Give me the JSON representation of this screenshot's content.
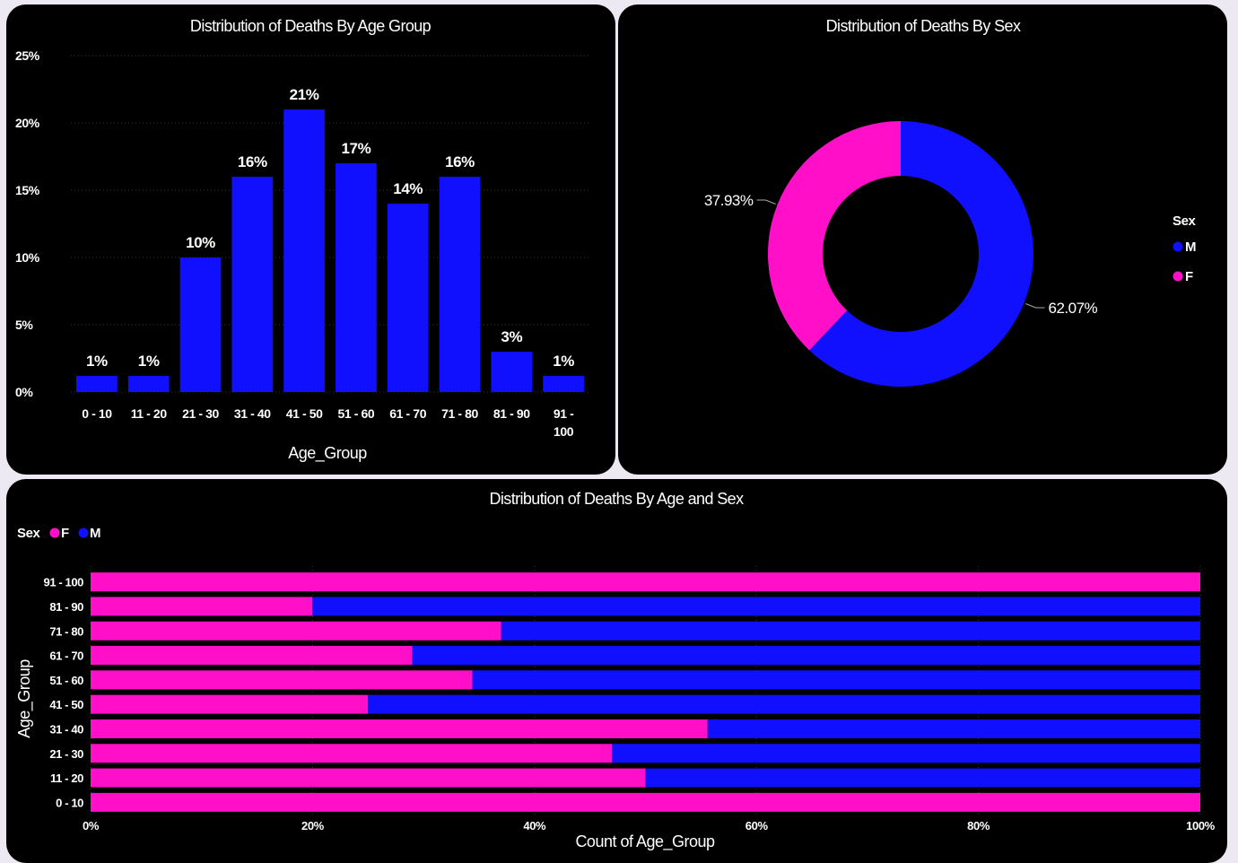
{
  "colors": {
    "male": "#1010ff",
    "female": "#ff10c8",
    "background": "#000000",
    "page": "#ece9f2",
    "grid": "#333333"
  },
  "chart_data": [
    {
      "type": "bar",
      "title": "Distribution of Deaths By Age Group",
      "xlabel": "Age_Group",
      "ylabel": "",
      "categories": [
        "0 - 10",
        "11 - 20",
        "21 - 30",
        "31 - 40",
        "41 - 50",
        "51 - 60",
        "61 - 70",
        "71 - 80",
        "81 - 90",
        "91 - 100"
      ],
      "values": [
        1.2,
        1.2,
        10,
        16,
        21,
        17,
        14,
        16,
        3,
        1.2
      ],
      "data_labels": [
        "1%",
        "1%",
        "10%",
        "16%",
        "21%",
        "17%",
        "14%",
        "16%",
        "3%",
        "1%"
      ],
      "ylim": [
        0,
        25
      ],
      "yticks": [
        "0%",
        "5%",
        "10%",
        "15%",
        "20%",
        "25%"
      ],
      "grid": true
    },
    {
      "type": "pie",
      "title": "Distribution of Deaths By Sex",
      "legend_title": "Sex",
      "legend_position": "right",
      "slices": [
        {
          "label": "M",
          "value": 62.07,
          "data_label": "62.07%"
        },
        {
          "label": "F",
          "value": 37.93,
          "data_label": "37.93%"
        }
      ]
    },
    {
      "type": "bar",
      "orientation": "horizontal",
      "stacked": "100%",
      "title": "Distribution of Deaths By Age and Sex",
      "xlabel": "Count of Age_Group",
      "ylabel": "Age_Group",
      "legend_title": "Sex",
      "legend_position": "top-left",
      "categories": [
        "91 - 100",
        "81 - 90",
        "71 - 80",
        "61 - 70",
        "51 - 60",
        "41 - 50",
        "31 - 40",
        "21 - 30",
        "11 - 20",
        "0 - 10"
      ],
      "series": [
        {
          "name": "F",
          "values": [
            100,
            20,
            37,
            29,
            34.4,
            25,
            55.6,
            47,
            50,
            100
          ]
        },
        {
          "name": "M",
          "values": [
            0,
            80,
            63,
            71,
            65.6,
            75,
            44.4,
            53,
            50,
            0
          ]
        }
      ],
      "xlim": [
        0,
        100
      ],
      "xticks": [
        "0%",
        "20%",
        "40%",
        "60%",
        "80%",
        "100%"
      ]
    }
  ]
}
